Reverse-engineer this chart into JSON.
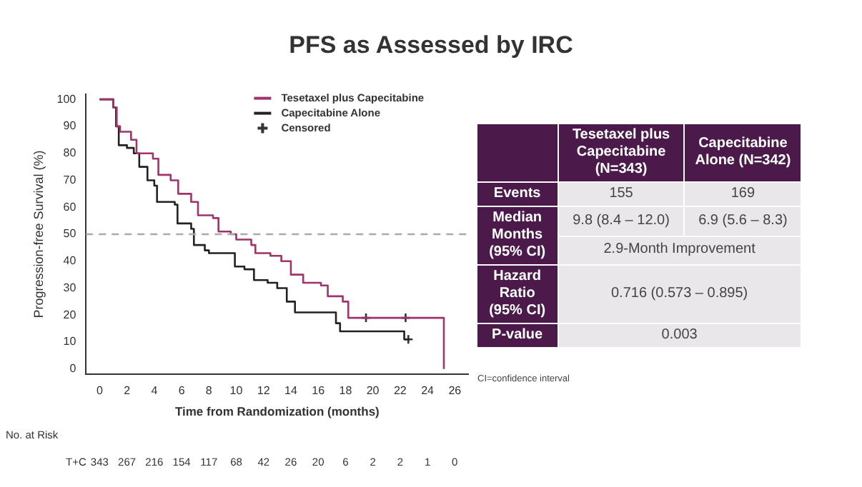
{
  "chart_data": {
    "type": "step",
    "title": "PFS as Assessed by IRC",
    "xlabel": "Time from Randomization (months)",
    "ylabel": "Progression-free Survival (%)",
    "xlim": [
      -1,
      27
    ],
    "xticks": [
      0,
      2,
      4,
      6,
      8,
      10,
      12,
      14,
      16,
      18,
      20,
      22,
      24,
      26
    ],
    "ylim": [
      -2,
      102
    ],
    "yticks": [
      0,
      10,
      20,
      30,
      40,
      50,
      60,
      70,
      80,
      90,
      100
    ],
    "grid": false,
    "legend": "top right",
    "ref_lines": [
      {
        "axis": "y",
        "value": 50,
        "color": "#aaaaaa",
        "line_style": "dashed"
      }
    ],
    "series": [
      {
        "name": "Tesetaxel plus Capecitabine",
        "color": "#a0336a",
        "x": [
          0,
          1,
          1.25,
          1.5,
          2.3,
          2.7,
          3.9,
          4.3,
          5.2,
          5.75,
          6.7,
          7.2,
          8.3,
          8.7,
          9.6,
          10,
          11.1,
          11.4,
          12.5,
          13.3,
          14,
          14.9,
          16.2,
          16.7,
          17.8,
          18.2,
          25.2,
          25.2
        ],
        "values": [
          100,
          97,
          90,
          88,
          85,
          80,
          78,
          72,
          70,
          65,
          62,
          57,
          56,
          51,
          50,
          48,
          46,
          43,
          42,
          40,
          35,
          32,
          31,
          27,
          25,
          19,
          19,
          0
        ]
      },
      {
        "name": "Capecitabine Alone",
        "color": "#222222",
        "x": [
          0,
          1,
          1.2,
          1.4,
          2,
          2.5,
          2.9,
          3.5,
          4,
          4.2,
          5.5,
          5.7,
          6.7,
          6.9,
          7.7,
          8,
          9.9,
          10.6,
          11.3,
          12.3,
          13,
          13.7,
          14.3,
          17.3,
          17.6,
          22.3,
          22.7
        ],
        "values": [
          100,
          97,
          90,
          83,
          82,
          80,
          75,
          70,
          68,
          62,
          61,
          54,
          52,
          46,
          44,
          43,
          38,
          37,
          33,
          32,
          30,
          25,
          21,
          17,
          14,
          11,
          11
        ]
      },
      {
        "name": "Censored",
        "type": "scatter",
        "marker": "cross",
        "color": "#333333",
        "x": [
          19.5,
          22.4,
          22.6
        ],
        "values": [
          19,
          19,
          11
        ]
      }
    ],
    "annotations": [
      "No. at Risk",
      "T+C",
      "343 267 216 154 117 68 42 26 20 6 2 2 1 0",
      "Tesetaxel plus Capecitabine (N=343)",
      "Capecitabine Alone (N=342)",
      "Events",
      "155",
      "169",
      "Median Months (95% CI)",
      "9.8 (8.4 – 12.0)",
      "6.9 (5.6 – 8.3)",
      "2.9-Month Improvement",
      "Hazard Ratio (95% CI)",
      "0.716 (0.573 – 0.895)",
      "P-value",
      "0.003",
      "CI=confidence interval"
    ]
  }
}
